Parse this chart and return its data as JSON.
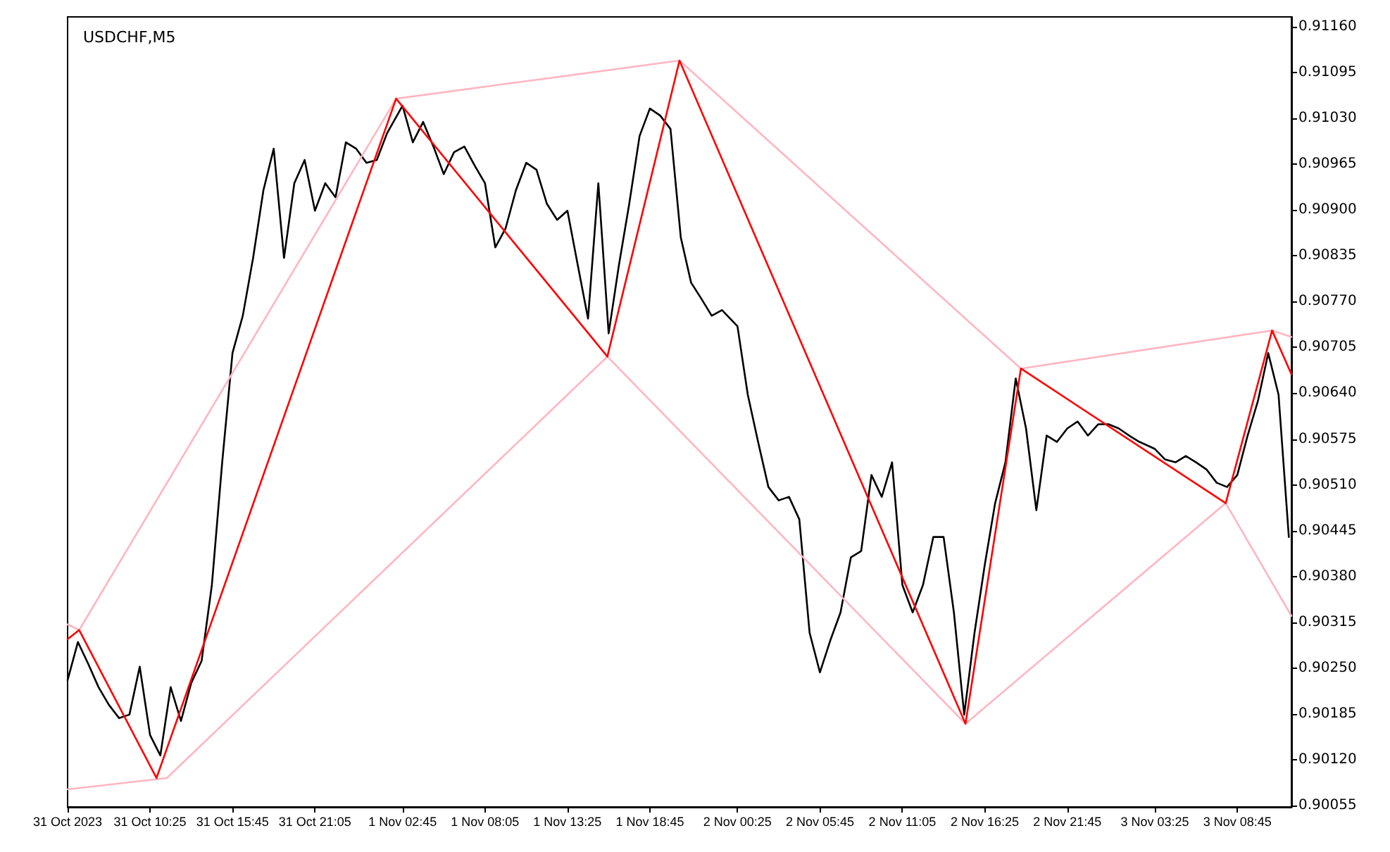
{
  "chart_data": {
    "type": "line",
    "title": "USDCHF,M5",
    "marker": "none",
    "line_style": "solid",
    "xlim": [
      "2023-10-31T05:05",
      "2023-11-03T12:15"
    ],
    "xticks": [
      {
        "value": "2023-10-31T05:05",
        "label": "31 Oct 2023"
      },
      {
        "value": "2023-10-31T10:25",
        "label": "31 Oct 10:25"
      },
      {
        "value": "2023-10-31T15:45",
        "label": "31 Oct 15:45"
      },
      {
        "value": "2023-10-31T21:05",
        "label": "31 Oct 21:05"
      },
      {
        "value": "2023-11-01T02:45",
        "label": "1 Nov 02:45"
      },
      {
        "value": "2023-11-01T08:05",
        "label": "1 Nov 08:05"
      },
      {
        "value": "2023-11-01T13:25",
        "label": "1 Nov 13:25"
      },
      {
        "value": "2023-11-01T18:45",
        "label": "1 Nov 18:45"
      },
      {
        "value": "2023-11-02T00:25",
        "label": "2 Nov 00:25"
      },
      {
        "value": "2023-11-02T05:45",
        "label": "2 Nov 05:45"
      },
      {
        "value": "2023-11-02T11:05",
        "label": "2 Nov 11:05"
      },
      {
        "value": "2023-11-02T16:25",
        "label": "2 Nov 16:25"
      },
      {
        "value": "2023-11-02T21:45",
        "label": "2 Nov 21:45"
      },
      {
        "value": "2023-11-03T03:25",
        "label": "3 Nov 03:25"
      },
      {
        "value": "2023-11-03T08:45",
        "label": "3 Nov 08:45"
      }
    ],
    "ylim": [
      0.90053,
      0.91174
    ],
    "yticks": [
      0.90055,
      {
        "value": 0.9012,
        "label": "0.90120"
      },
      0.90185,
      {
        "value": 0.9025,
        "label": "0.90250"
      },
      0.90315,
      {
        "value": 0.9038,
        "label": "0.90380"
      },
      0.90445,
      {
        "value": 0.9051,
        "label": "0.90510"
      },
      0.90575,
      {
        "value": 0.9064,
        "label": "0.90640"
      },
      0.90705,
      {
        "value": 0.9077,
        "label": "0.90770"
      },
      0.90835,
      {
        "value": 0.909,
        "label": "0.90900"
      },
      0.90965,
      {
        "value": 0.9103,
        "label": "0.91030"
      },
      0.91095,
      {
        "value": 0.9116,
        "label": "0.91160"
      }
    ],
    "series": [
      {
        "color": "#000000",
        "x": [
          "2023-10-31T05:05",
          "2023-10-31T05:45",
          "2023-10-31T06:25",
          "2023-10-31T07:05",
          "2023-10-31T07:45",
          "2023-10-31T08:25",
          "2023-10-31T09:05",
          "2023-10-31T09:45",
          "2023-10-31T10:25",
          "2023-10-31T11:05",
          "2023-10-31T11:45",
          "2023-10-31T12:25",
          "2023-10-31T13:05",
          "2023-10-31T13:45",
          "2023-10-31T14:25",
          "2023-10-31T15:05",
          "2023-10-31T15:45",
          "2023-10-31T16:25",
          "2023-10-31T17:05",
          "2023-10-31T17:45",
          "2023-10-31T18:25",
          "2023-10-31T19:05",
          "2023-10-31T19:45",
          "2023-10-31T20:25",
          "2023-10-31T21:05",
          "2023-10-31T21:45",
          "2023-10-31T22:25",
          "2023-10-31T23:05",
          "2023-10-31T23:45",
          "2023-11-01T00:25",
          "2023-11-01T01:05",
          "2023-11-01T01:45",
          "2023-11-01T02:45",
          "2023-11-01T03:25",
          "2023-11-01T04:05",
          "2023-11-01T04:45",
          "2023-11-01T05:25",
          "2023-11-01T06:05",
          "2023-11-01T06:45",
          "2023-11-01T07:25",
          "2023-11-01T08:05",
          "2023-11-01T08:45",
          "2023-11-01T09:25",
          "2023-11-01T10:05",
          "2023-11-01T10:45",
          "2023-11-01T11:25",
          "2023-11-01T12:05",
          "2023-11-01T12:45",
          "2023-11-01T13:25",
          "2023-11-01T14:05",
          "2023-11-01T14:45",
          "2023-11-01T15:25",
          "2023-11-01T16:05",
          "2023-11-01T16:45",
          "2023-11-01T17:25",
          "2023-11-01T18:05",
          "2023-11-01T18:45",
          "2023-11-01T19:25",
          "2023-11-01T20:05",
          "2023-11-01T20:45",
          "2023-11-01T21:25",
          "2023-11-01T22:05",
          "2023-11-01T22:45",
          "2023-11-01T23:25",
          "2023-11-02T00:25",
          "2023-11-02T01:05",
          "2023-11-02T01:45",
          "2023-11-02T02:25",
          "2023-11-02T03:05",
          "2023-11-02T03:45",
          "2023-11-02T04:25",
          "2023-11-02T05:05",
          "2023-11-02T05:45",
          "2023-11-02T06:25",
          "2023-11-02T07:05",
          "2023-11-02T07:45",
          "2023-11-02T08:25",
          "2023-11-02T09:05",
          "2023-11-02T09:45",
          "2023-11-02T10:25",
          "2023-11-02T11:05",
          "2023-11-02T11:45",
          "2023-11-02T12:25",
          "2023-11-02T13:05",
          "2023-11-02T13:45",
          "2023-11-02T14:25",
          "2023-11-02T15:05",
          "2023-11-02T15:45",
          "2023-11-02T16:25",
          "2023-11-02T17:05",
          "2023-11-02T17:45",
          "2023-11-02T18:25",
          "2023-11-02T19:05",
          "2023-11-02T19:45",
          "2023-11-02T20:25",
          "2023-11-02T21:05",
          "2023-11-02T21:45",
          "2023-11-02T22:25",
          "2023-11-02T23:05",
          "2023-11-02T23:45",
          "2023-11-03T00:25",
          "2023-11-03T01:05",
          "2023-11-03T01:45",
          "2023-11-03T02:25",
          "2023-11-03T03:25",
          "2023-11-03T04:05",
          "2023-11-03T04:45",
          "2023-11-03T05:25",
          "2023-11-03T06:05",
          "2023-11-03T06:45",
          "2023-11-03T07:25",
          "2023-11-03T08:05",
          "2023-11-03T08:45",
          "2023-11-03T09:25",
          "2023-11-03T10:05",
          "2023-11-03T10:45",
          "2023-11-03T11:25",
          "2023-11-03T12:05"
        ],
        "values": [
          0.90233,
          0.90287,
          0.90256,
          0.90223,
          0.90198,
          0.90179,
          0.90184,
          0.90252,
          0.90155,
          0.90126,
          0.90223,
          0.90175,
          0.90229,
          0.9026,
          0.90368,
          0.90542,
          0.90697,
          0.9075,
          0.90832,
          0.90928,
          0.90987,
          0.90832,
          0.90938,
          0.90971,
          0.90899,
          0.90938,
          0.90918,
          0.90996,
          0.90987,
          0.90967,
          0.90971,
          0.91009,
          0.91048,
          0.90996,
          0.91025,
          0.9099,
          0.90951,
          0.90982,
          0.9099,
          0.90963,
          0.90938,
          0.90847,
          0.90874,
          0.90928,
          0.90967,
          0.90957,
          0.90909,
          0.90886,
          0.90899,
          0.90822,
          0.90746,
          0.90938,
          0.90725,
          0.90822,
          0.90909,
          0.91005,
          0.91044,
          0.91034,
          0.91015,
          0.90861,
          0.90797,
          0.90774,
          0.9075,
          0.90758,
          0.90735,
          0.90638,
          0.90571,
          0.90507,
          0.90488,
          0.90493,
          0.90461,
          0.903,
          0.90244,
          0.90289,
          0.90329,
          0.90407,
          0.90416,
          0.90524,
          0.90493,
          0.90542,
          0.90368,
          0.90329,
          0.90368,
          0.90436,
          0.90436,
          0.90329,
          0.90184,
          0.903,
          0.90397,
          0.90484,
          0.90542,
          0.90661,
          0.9059,
          0.90474,
          0.9058,
          0.90571,
          0.9059,
          0.906,
          0.9058,
          0.90596,
          0.90596,
          0.9059,
          0.9058,
          0.90571,
          0.90561,
          0.90546,
          0.90542,
          0.90551,
          0.90542,
          0.90532,
          0.90513,
          0.90507,
          0.90524,
          0.9058,
          0.90629,
          0.90697,
          0.90638,
          0.90436
        ]
      },
      {
        "color": "#ffb6c1",
        "x": [
          "2023-10-31T05:05",
          "2023-10-31T05:50",
          "2023-11-01T02:20",
          "2023-11-01T20:40",
          "2023-11-02T18:45",
          "2023-11-03T11:00",
          "2023-11-03T12:15"
        ],
        "values": [
          0.90312,
          0.90304,
          0.91058,
          0.91112,
          0.90675,
          0.90729,
          0.9072
        ]
      },
      {
        "color": "#ffb6c1",
        "x": [
          "2023-10-31T05:05",
          "2023-10-31T11:30",
          "2023-11-01T16:00",
          "2023-11-02T15:10",
          "2023-11-03T08:00",
          "2023-11-03T12:15"
        ],
        "values": [
          0.90078,
          0.90094,
          0.90692,
          0.90171,
          0.90484,
          0.90324
        ]
      },
      {
        "color": "#ff0000",
        "x": [
          "2023-10-31T05:05",
          "2023-10-31T05:50",
          "2023-10-31T10:50",
          "2023-11-01T02:20",
          "2023-11-01T16:00",
          "2023-11-01T20:40",
          "2023-11-02T15:10",
          "2023-11-02T18:45",
          "2023-11-03T08:00",
          "2023-11-03T11:00",
          "2023-11-03T12:15"
        ],
        "values": [
          0.90291,
          0.90304,
          0.90094,
          0.91058,
          0.90692,
          0.91112,
          0.90171,
          0.90675,
          0.90484,
          0.90729,
          0.90667
        ]
      }
    ]
  }
}
